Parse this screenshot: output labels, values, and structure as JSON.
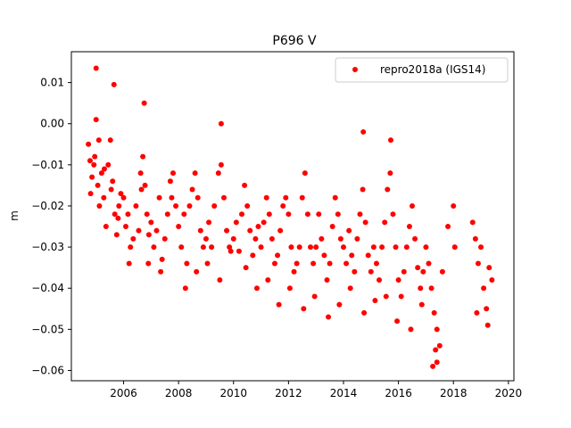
{
  "chart_data": {
    "type": "scatter",
    "title": "P696 V",
    "xlabel": "",
    "ylabel": "m",
    "xlim": [
      2004.1,
      2020.2
    ],
    "ylim": [
      -0.0625,
      0.0175
    ],
    "xticks": [
      2006,
      2008,
      2010,
      2012,
      2014,
      2016,
      2018,
      2020
    ],
    "xtick_labels": [
      "2006",
      "2008",
      "2010",
      "2012",
      "2014",
      "2016",
      "2018",
      "2020"
    ],
    "yticks": [
      0.01,
      0.0,
      -0.01,
      -0.02,
      -0.03,
      -0.04,
      -0.05,
      -0.06
    ],
    "ytick_labels": [
      "0.01",
      "0.00",
      "−0.01",
      "−0.02",
      "−0.03",
      "−0.04",
      "−0.05",
      "−0.06"
    ],
    "grid": false,
    "legend_position": "top-right",
    "series": [
      {
        "name": "repro2018a (IGS14)",
        "color": "#ff0000",
        "marker": "circle",
        "x": [
          2004.72,
          2004.78,
          2004.85,
          2004.92,
          2005.0,
          2005.06,
          2005.12,
          2005.2,
          2005.28,
          2005.36,
          2005.44,
          2005.52,
          2005.6,
          2005.68,
          2005.75,
          2005.83,
          2005.9,
          2006.0,
          2006.08,
          2006.16,
          2006.25,
          2006.35,
          2006.45,
          2006.55,
          2006.62,
          2006.7,
          2006.78,
          2006.85,
          2006.92,
          2007.0,
          2007.1,
          2007.2,
          2007.3,
          2007.4,
          2007.5,
          2007.6,
          2007.7,
          2007.8,
          2007.9,
          2008.0,
          2008.1,
          2008.2,
          2008.3,
          2008.4,
          2008.5,
          2008.6,
          2008.7,
          2008.8,
          2008.9,
          2009.0,
          2009.1,
          2009.2,
          2009.3,
          2009.45,
          2009.55,
          2009.65,
          2009.75,
          2009.85,
          2010.0,
          2010.1,
          2010.2,
          2010.3,
          2010.4,
          2010.5,
          2010.6,
          2010.7,
          2010.8,
          2010.9,
          2011.0,
          2011.1,
          2011.2,
          2011.3,
          2011.4,
          2011.5,
          2011.6,
          2011.7,
          2011.8,
          2011.9,
          2012.0,
          2012.1,
          2012.2,
          2012.3,
          2012.4,
          2012.5,
          2012.6,
          2012.7,
          2012.8,
          2012.9,
          2013.0,
          2013.1,
          2013.2,
          2013.3,
          2013.4,
          2013.5,
          2013.6,
          2013.7,
          2013.8,
          2013.9,
          2014.0,
          2014.1,
          2014.2,
          2014.3,
          2014.4,
          2014.5,
          2014.6,
          2014.7,
          2014.8,
          2014.9,
          2015.0,
          2015.1,
          2015.2,
          2015.3,
          2015.4,
          2015.5,
          2015.6,
          2015.7,
          2015.8,
          2015.9,
          2016.0,
          2016.1,
          2016.2,
          2016.3,
          2016.4,
          2016.5,
          2016.6,
          2016.7,
          2016.8,
          2016.9,
          2017.0,
          2017.1,
          2017.2,
          2017.3,
          2017.4,
          2017.5,
          2017.6,
          2017.8,
          2018.0,
          2018.05,
          2018.7,
          2018.8,
          2018.9,
          2019.0,
          2019.1,
          2019.2,
          2019.3,
          2019.4,
          2004.8,
          2004.95,
          2005.1,
          2005.3,
          2005.55,
          2005.8,
          2006.2,
          2006.65,
          2006.9,
          2007.35,
          2007.75,
          2008.25,
          2008.65,
          2009.05,
          2009.5,
          2009.9,
          2010.45,
          2010.85,
          2011.25,
          2011.65,
          2012.05,
          2012.55,
          2012.95,
          2013.45,
          2013.85,
          2014.25,
          2014.75,
          2015.15,
          2015.55,
          2015.95,
          2016.45,
          2016.85,
          2017.25,
          2018.85,
          2019.25,
          2005.0,
          2005.65,
          2006.75,
          2009.55,
          2014.72,
          2015.72,
          2017.35,
          2017.4
        ],
        "y": [
          -0.005,
          -0.009,
          -0.013,
          -0.01,
          0.001,
          -0.015,
          -0.02,
          -0.012,
          -0.018,
          -0.025,
          -0.01,
          -0.004,
          -0.014,
          -0.022,
          -0.027,
          -0.02,
          -0.017,
          -0.018,
          -0.025,
          -0.022,
          -0.03,
          -0.028,
          -0.02,
          -0.026,
          -0.012,
          -0.008,
          -0.015,
          -0.022,
          -0.027,
          -0.024,
          -0.03,
          -0.026,
          -0.018,
          -0.033,
          -0.028,
          -0.022,
          -0.014,
          -0.012,
          -0.02,
          -0.025,
          -0.03,
          -0.022,
          -0.034,
          -0.02,
          -0.016,
          -0.012,
          -0.018,
          -0.026,
          -0.03,
          -0.028,
          -0.024,
          -0.03,
          -0.02,
          -0.012,
          -0.01,
          -0.018,
          -0.026,
          -0.03,
          -0.028,
          -0.024,
          -0.031,
          -0.022,
          -0.015,
          -0.02,
          -0.026,
          -0.032,
          -0.028,
          -0.025,
          -0.03,
          -0.024,
          -0.018,
          -0.022,
          -0.028,
          -0.034,
          -0.032,
          -0.026,
          -0.02,
          -0.018,
          -0.022,
          -0.03,
          -0.036,
          -0.034,
          -0.03,
          -0.018,
          -0.012,
          -0.022,
          -0.03,
          -0.034,
          -0.03,
          -0.022,
          -0.028,
          -0.032,
          -0.038,
          -0.034,
          -0.025,
          -0.018,
          -0.022,
          -0.028,
          -0.03,
          -0.034,
          -0.026,
          -0.032,
          -0.036,
          -0.028,
          -0.022,
          -0.016,
          -0.024,
          -0.032,
          -0.036,
          -0.03,
          -0.034,
          -0.038,
          -0.03,
          -0.024,
          -0.016,
          -0.012,
          -0.022,
          -0.03,
          -0.038,
          -0.042,
          -0.036,
          -0.03,
          -0.025,
          -0.02,
          -0.028,
          -0.035,
          -0.04,
          -0.036,
          -0.03,
          -0.034,
          -0.04,
          -0.046,
          -0.05,
          -0.054,
          -0.036,
          -0.025,
          -0.02,
          -0.03,
          -0.024,
          -0.028,
          -0.034,
          -0.03,
          -0.04,
          -0.045,
          -0.035,
          -0.038,
          -0.017,
          -0.008,
          -0.004,
          -0.011,
          -0.016,
          -0.023,
          -0.034,
          -0.016,
          -0.034,
          -0.036,
          -0.018,
          -0.04,
          -0.036,
          -0.034,
          -0.038,
          -0.031,
          -0.035,
          -0.04,
          -0.038,
          -0.044,
          -0.04,
          -0.045,
          -0.042,
          -0.047,
          -0.044,
          -0.04,
          -0.046,
          -0.043,
          -0.042,
          -0.048,
          -0.05,
          -0.044,
          -0.059,
          -0.046,
          -0.049,
          0.0135,
          0.0095,
          0.005,
          0.0,
          -0.002,
          -0.004,
          -0.055,
          -0.058
        ]
      }
    ]
  }
}
